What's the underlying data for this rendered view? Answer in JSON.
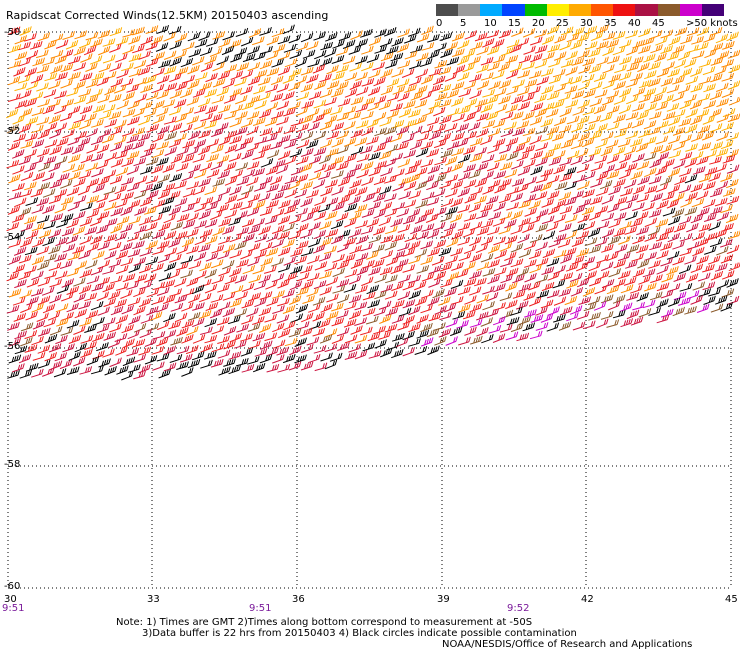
{
  "title": "Rapidscat Corrected Winds(12.5KM) 20150403 ascending",
  "scale": {
    "labels": [
      "0",
      "5",
      "10",
      "15",
      "20",
      "25",
      "30",
      "35",
      "40",
      "45",
      ">50 knots"
    ],
    "colors": [
      "#4d4d4d",
      "#9a9a9a",
      "#00aaff",
      "#0044ff",
      "#00bb00",
      "#ffee00",
      "#ffaa00",
      "#ff5500",
      "#ee1111",
      "#aa1144",
      "#8b5a2b",
      "#cc00cc",
      "#440077"
    ]
  },
  "axes": {
    "lat_labels": [
      "-50",
      "-52",
      "-54",
      "-56",
      "-58",
      "-60"
    ],
    "lon_labels": [
      "30",
      "33",
      "36",
      "39",
      "42",
      "45"
    ]
  },
  "times": [
    "9:51",
    "9:51",
    "9:52"
  ],
  "notes": {
    "line1": "Note: 1) Times are GMT 2)Times along bottom correspond to measurement at -50S",
    "line2": "3)Data buffer is 22 hrs from 20150403 4) Black circles indicate possible contamination",
    "line3": "NOAA/NESDIS/Office of Research and Applications"
  },
  "wind_colors": {
    "black": "#000000",
    "orange": "#ff8a00",
    "gold": "#ffb000",
    "red": "#ee2020",
    "crimson": "#cc1440",
    "brown": "#8b5a2b",
    "magenta": "#cc00cc"
  }
}
